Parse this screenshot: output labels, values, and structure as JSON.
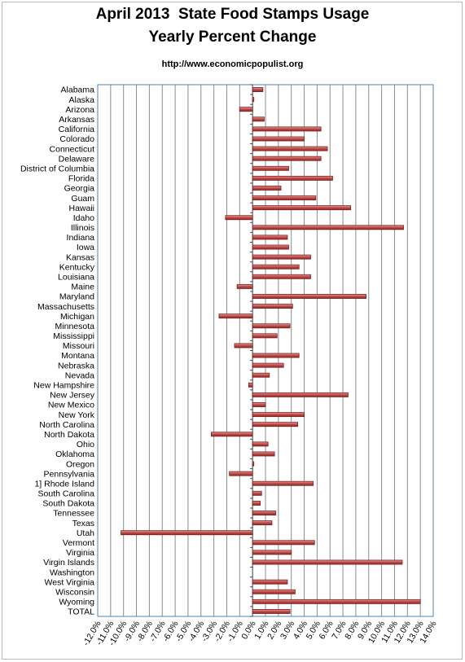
{
  "title_line1": "April 2013  State Food Stamps Usage",
  "title_line2": "Yearly Percent Change",
  "subtitle": "http://www.economicpopulist.org",
  "colors": {
    "bar_fill": "#c0504d",
    "bar_edge": "#7f1f1f",
    "grid": "#8c8c8c",
    "plot_border": "#4f81bd"
  },
  "chart_data": {
    "type": "bar",
    "orientation": "horizontal",
    "title": "April 2013  State Food Stamps Usage\nYearly Percent Change",
    "xlabel": "",
    "ylabel": "",
    "xlim": [
      -12.0,
      14.0
    ],
    "grid": true,
    "legend": "none",
    "x_tick_labels": [
      "-12.0%",
      "-11.0%",
      "-10.0%",
      "-9.0%",
      "-8.0%",
      "-7.0%",
      "-6.0%",
      "-5.0%",
      "-4.0%",
      "-3.0%",
      "-2.0%",
      "-1.0%",
      "0.0%",
      "1.0%",
      "2.0%",
      "3.0%",
      "4.0%",
      "5.0%",
      "6.0%",
      "7.0%",
      "8.0%",
      "9.0%",
      "10.0%",
      "11.0%",
      "12.0%",
      "13.0%",
      "14.0%"
    ],
    "categories": [
      "Alabama",
      "Alaska",
      "Arizona",
      "Arkansas",
      "California",
      "Colorado",
      "Connecticut",
      "Delaware",
      "District of Columbia",
      "Florida",
      "Georgia",
      "Guam",
      "Hawaii",
      "Idaho",
      "Illinois",
      "Indiana",
      "Iowa",
      "Kansas",
      "Kentucky",
      "Louisiana",
      "Maine",
      "Maryland",
      "Massachusetts",
      "Michigan",
      "Minnesota",
      "Mississippi",
      "Missouri",
      "Montana",
      "Nebraska",
      "Nevada",
      "New Hampshire",
      "New Jersey",
      "New Mexico",
      "New York",
      "North Carolina",
      "North Dakota",
      "Ohio",
      "Oklahoma",
      "Oregon",
      "Pennsylvania",
      "1] Rhode Island",
      "South Carolina",
      "South Dakota",
      "Tennessee",
      "Texas",
      "Utah",
      "Vermont",
      "Virginia",
      "Virgin Islands",
      "Washington",
      "West Virginia",
      "Wisconsin",
      "Wyoming",
      "TOTAL"
    ],
    "values": [
      0.8,
      0.1,
      -1.0,
      0.9,
      5.3,
      4.0,
      5.8,
      5.3,
      2.8,
      6.2,
      2.2,
      4.9,
      7.6,
      -2.1,
      11.7,
      2.7,
      2.8,
      4.5,
      3.6,
      4.5,
      -1.2,
      8.8,
      3.1,
      -2.6,
      2.9,
      1.9,
      -1.4,
      3.6,
      2.4,
      1.3,
      -0.3,
      7.4,
      1.0,
      4.0,
      3.5,
      -3.2,
      1.2,
      1.7,
      0.1,
      -1.8,
      4.7,
      0.7,
      0.6,
      1.8,
      1.5,
      -10.2,
      4.8,
      3.0,
      11.6,
      0.0,
      2.7,
      3.3,
      13.0,
      2.9
    ]
  }
}
